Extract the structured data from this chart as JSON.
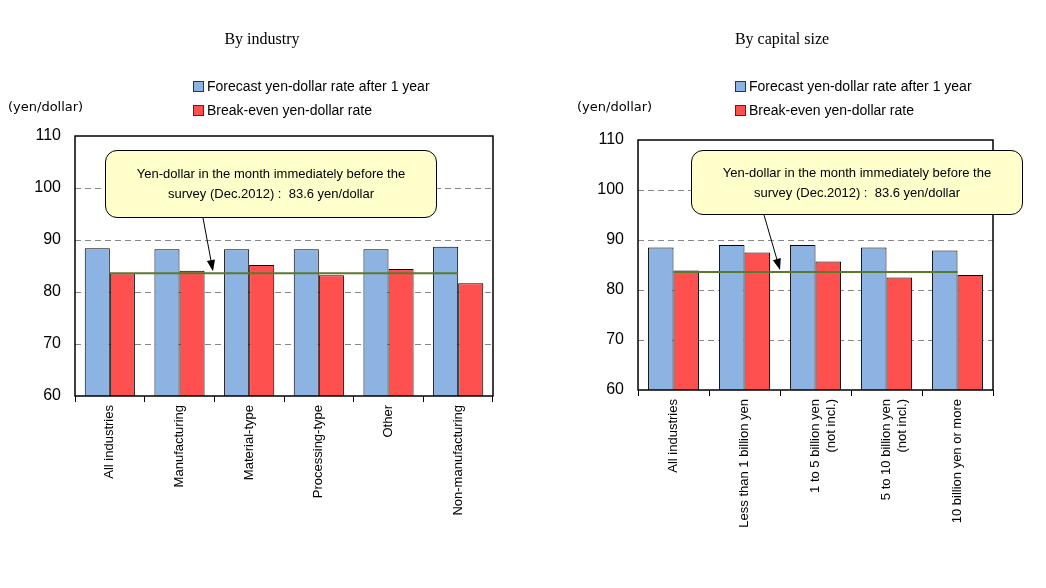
{
  "chart_data": [
    {
      "type": "bar",
      "title": "By industry",
      "ylabel": "(yen/dollar)",
      "categories": [
        "All industries",
        "Manufacturing",
        "Material-type",
        "Processing-type",
        "Other",
        "Non-manufacturing"
      ],
      "series": [
        {
          "name": "Forecast yen-dollar rate after 1 year",
          "color": "#8db3e2",
          "values": [
            88.4,
            88.2,
            88.2,
            88.2,
            88.2,
            88.7
          ]
        },
        {
          "name": "Break-even yen-dollar rate",
          "color": "#ff5050",
          "values": [
            83.6,
            84.1,
            85.2,
            83.2,
            84.4,
            81.7
          ]
        }
      ],
      "ylim": [
        60,
        110
      ],
      "yticks": [
        60,
        70,
        80,
        90,
        100,
        110
      ],
      "grid": "y",
      "legend": "top right",
      "annotations": [
        "Yen-dollar in the month immediately before the survey (Dec.2012) :  83.6 yen/dollar"
      ],
      "ref_lines": [
        {
          "axis": "y",
          "value": 83.6,
          "color": "#5a7a2e"
        }
      ]
    },
    {
      "type": "bar",
      "title": "By capital size",
      "ylabel": "(yen/dollar)",
      "categories": [
        "All industries",
        "Less than 1 billion yen",
        "1 to 5 billion yen\n(not incl.)",
        "5 to 10 billion yen\n(not incl.)",
        "10 billion yen or more"
      ],
      "series": [
        {
          "name": "Forecast yen-dollar rate after 1 year",
          "color": "#8db3e2",
          "values": [
            88.5,
            89.0,
            89.0,
            88.5,
            87.9
          ]
        },
        {
          "name": "Break-even yen-dollar rate",
          "color": "#ff5050",
          "values": [
            83.9,
            87.5,
            85.7,
            82.5,
            83.0
          ]
        }
      ],
      "ylim": [
        60,
        110
      ],
      "yticks": [
        60,
        70,
        80,
        90,
        100,
        110
      ],
      "grid": "y",
      "legend": "top right",
      "annotations": [
        "Yen-dollar in the month immediately before the survey (Dec.2012) :  83.6 yen/dollar"
      ],
      "ref_lines": [
        {
          "axis": "y",
          "value": 83.6,
          "color": "#5a7a2e"
        }
      ]
    }
  ]
}
